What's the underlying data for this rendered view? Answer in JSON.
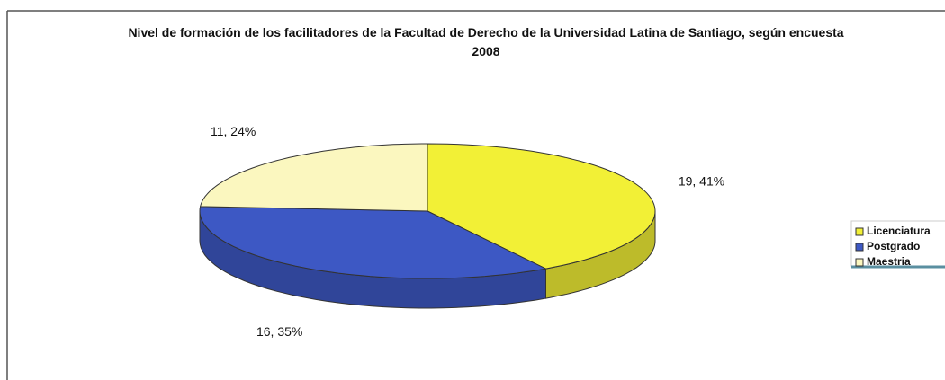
{
  "chart_data": {
    "type": "pie",
    "title": "Nivel de formación de los facilitadores de la Facultad de Derecho de la Universidad Latina de Santiago, según encuesta 2008",
    "categories": [
      "Licenciatura",
      "Postgrado",
      "Maestria"
    ],
    "values": [
      19,
      16,
      11
    ],
    "value_labels": [
      "19, 41%",
      "16, 35%",
      "11, 24%"
    ],
    "colors": [
      "#f2f036",
      "#3d58c4",
      "#fbf7bf"
    ],
    "legend": "right"
  }
}
